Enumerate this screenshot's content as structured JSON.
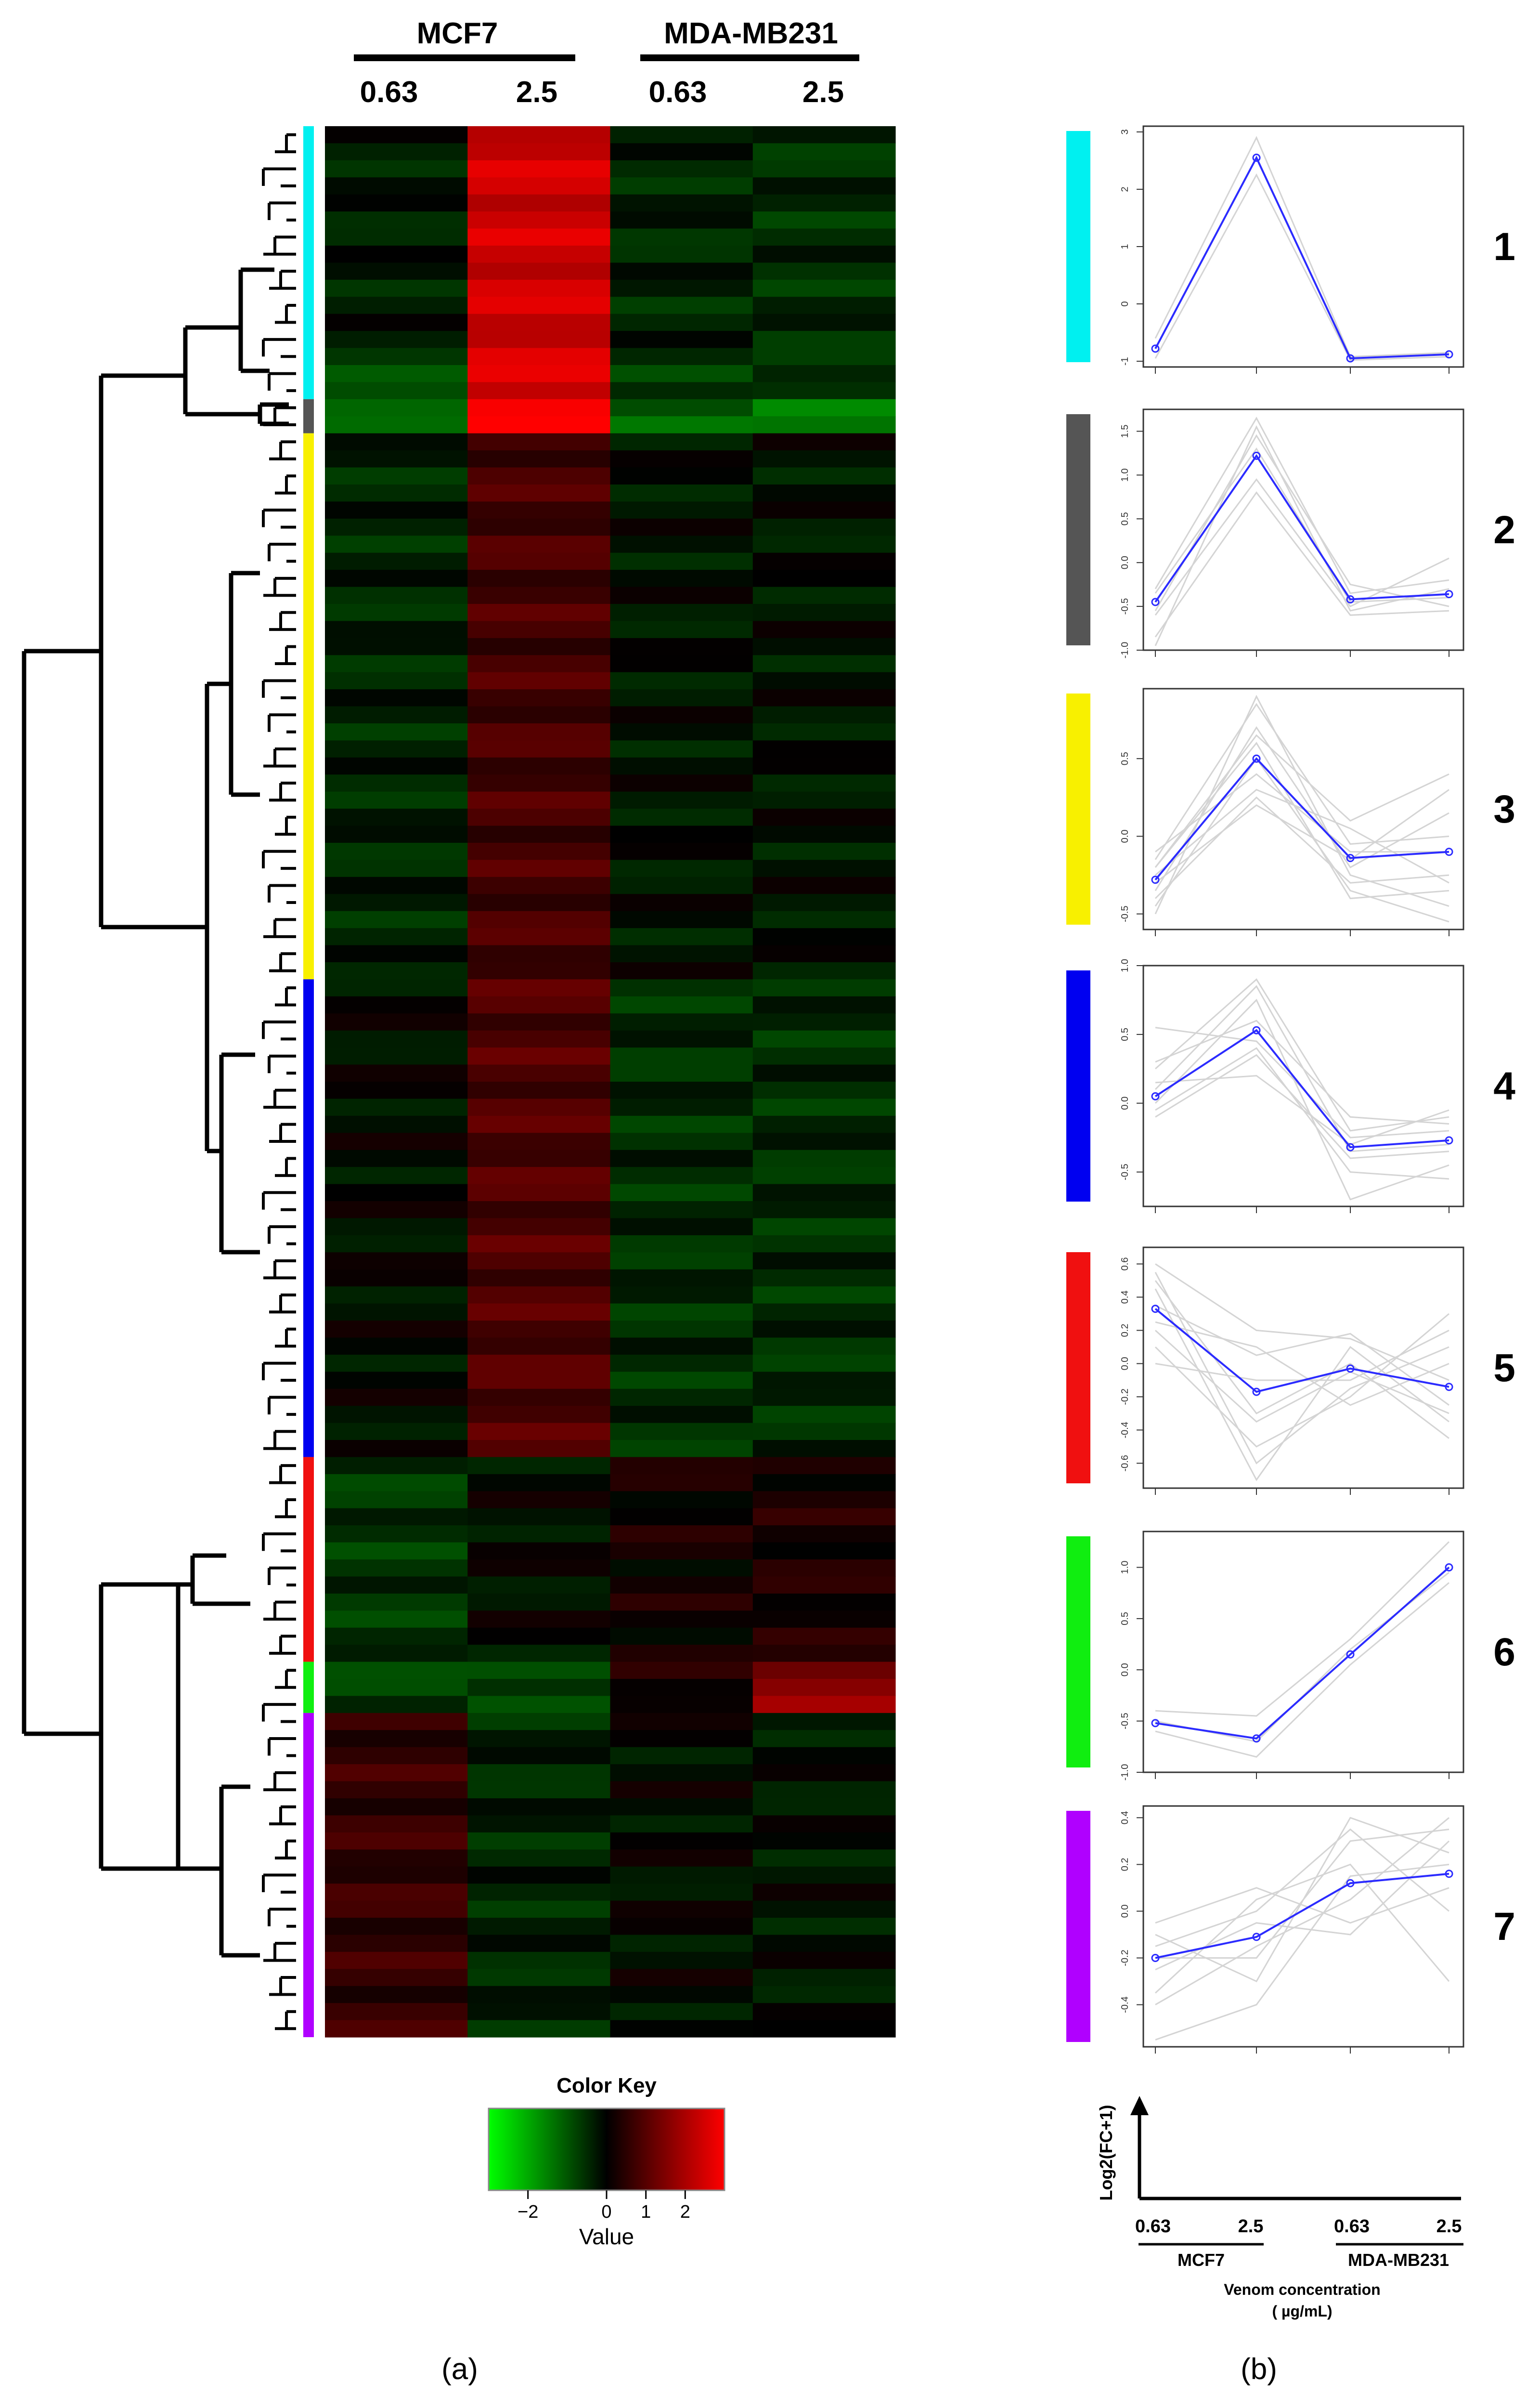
{
  "chart_data": [
    {
      "panel": "a",
      "type": "heatmap",
      "panel_label": "(a)",
      "column_groups": [
        {
          "name": "MCF7",
          "concentrations": [
            "0.63",
            "2.5"
          ]
        },
        {
          "name": "MDA-MB231",
          "concentrations": [
            "0.63",
            "2.5"
          ]
        }
      ],
      "cluster_colors": [
        "#00f0f0",
        "#555555",
        "#f8f000",
        "#0000f0",
        "#f01010",
        "#10ee10",
        "#b000ff"
      ],
      "cluster_row_counts": [
        16,
        2,
        32,
        28,
        12,
        3,
        19
      ],
      "row_blocks": [
        {
          "cluster": 1,
          "rows": 14,
          "values": [
            -0.3,
            2.4,
            -0.4,
            -0.5
          ]
        },
        {
          "cluster": 1,
          "rows": 2,
          "values": [
            -1.2,
            2.6,
            -0.6,
            -0.7
          ]
        },
        {
          "cluster": 2,
          "rows": 2,
          "values": [
            -1.0,
            3.0,
            -1.2,
            -1.3
          ]
        },
        {
          "cluster": 3,
          "rows": 32,
          "values": [
            -0.4,
            0.8,
            -0.2,
            -0.2
          ]
        },
        {
          "cluster": 4,
          "rows": 28,
          "values": [
            -0.1,
            0.9,
            -0.5,
            -0.5
          ]
        },
        {
          "cluster": 5,
          "rows": 12,
          "values": [
            -0.6,
            -0.1,
            0.2,
            0.3
          ]
        },
        {
          "cluster": 6,
          "rows": 3,
          "values": [
            -0.7,
            -0.9,
            0.3,
            1.6
          ]
        },
        {
          "cluster": 7,
          "rows": 19,
          "values": [
            0.6,
            -0.4,
            -0.1,
            -0.2
          ]
        }
      ],
      "color_key": {
        "title": "Color Key",
        "xlabel": "Value",
        "range": [
          -3,
          3
        ],
        "ticks": [
          -2,
          0,
          1,
          2
        ],
        "low_color": "#00ff00",
        "mid_color": "#000000",
        "high_color": "#ff0000"
      }
    },
    {
      "panel": "b",
      "type": "line",
      "panel_label": "(b)",
      "x_categories": [
        "0.63",
        "2.5",
        "0.63",
        "2.5"
      ],
      "x_groups": [
        "MCF7",
        "MDA-MB231"
      ],
      "xlabel": "Venom concentration",
      "xlabel_units": "( µg/mL)",
      "ylabel": "Log2(FC+1)",
      "mean_color": "#2b2bff",
      "profile_color": "#d4d4d4",
      "clusters": [
        {
          "id": "1",
          "color": "#00f0f0",
          "ylim": [
            -1.1,
            3.1
          ],
          "yticks": [
            -1,
            0,
            1,
            2,
            3
          ],
          "mean": [
            -0.78,
            2.55,
            -0.95,
            -0.88
          ],
          "profiles": [
            [
              -0.6,
              2.9,
              -0.92,
              -0.85
            ],
            [
              -0.95,
              2.25,
              -0.98,
              -0.92
            ]
          ]
        },
        {
          "id": "2",
          "color": "#555555",
          "ylim": [
            -1.0,
            1.75
          ],
          "yticks": [
            -1.0,
            -0.5,
            0.0,
            0.5,
            1.0,
            1.5
          ],
          "mean": [
            -0.45,
            1.22,
            -0.42,
            -0.36
          ],
          "profiles": [
            [
              -0.3,
              1.65,
              -0.35,
              -0.2
            ],
            [
              -0.85,
              0.8,
              -0.6,
              -0.55
            ],
            [
              -0.55,
              1.45,
              -0.25,
              -0.5
            ],
            [
              -0.6,
              0.95,
              -0.5,
              0.05
            ],
            [
              -0.35,
              1.3,
              -0.45,
              -0.4
            ],
            [
              -0.95,
              1.55,
              -0.55,
              -0.3
            ]
          ]
        },
        {
          "id": "3",
          "color": "#f8f000",
          "ylim": [
            -0.6,
            0.95
          ],
          "yticks": [
            -0.5,
            0.0,
            0.5
          ],
          "mean": [
            -0.28,
            0.5,
            -0.14,
            -0.1
          ],
          "profiles": [
            [
              -0.15,
              0.85,
              -0.05,
              0.0
            ],
            [
              -0.4,
              0.25,
              -0.3,
              -0.25
            ],
            [
              -0.2,
              0.65,
              0.1,
              0.4
            ],
            [
              -0.45,
              0.5,
              -0.35,
              -0.55
            ],
            [
              -0.25,
              0.3,
              0.05,
              -0.3
            ],
            [
              -0.35,
              0.7,
              -0.2,
              0.15
            ],
            [
              -0.1,
              0.4,
              -0.1,
              -0.1
            ],
            [
              -0.5,
              0.9,
              -0.25,
              -0.45
            ],
            [
              -0.3,
              0.2,
              -0.15,
              0.3
            ],
            [
              -0.2,
              0.6,
              -0.4,
              -0.35
            ]
          ]
        },
        {
          "id": "4",
          "color": "#0000f0",
          "ylim": [
            -0.75,
            1.0
          ],
          "yticks": [
            -0.5,
            0.0,
            0.5,
            1.0
          ],
          "mean": [
            0.05,
            0.53,
            -0.32,
            -0.27
          ],
          "profiles": [
            [
              0.25,
              0.9,
              -0.2,
              -0.1
            ],
            [
              -0.1,
              0.35,
              -0.4,
              -0.35
            ],
            [
              0.55,
              0.45,
              -0.25,
              -0.2
            ],
            [
              0.0,
              0.75,
              -0.7,
              -0.45
            ],
            [
              0.3,
              0.6,
              -0.1,
              -0.15
            ],
            [
              -0.05,
              0.4,
              -0.5,
              -0.55
            ],
            [
              0.15,
              0.2,
              -0.3,
              -0.05
            ],
            [
              0.1,
              0.85,
              -0.35,
              -0.3
            ]
          ]
        },
        {
          "id": "5",
          "color": "#f01010",
          "ylim": [
            -0.75,
            0.7
          ],
          "yticks": [
            -0.6,
            -0.4,
            -0.2,
            0.0,
            0.2,
            0.4,
            0.6
          ],
          "mean": [
            0.33,
            -0.17,
            -0.03,
            -0.14
          ],
          "profiles": [
            [
              0.6,
              0.2,
              0.15,
              -0.1
            ],
            [
              0.1,
              -0.5,
              -0.2,
              0.3
            ],
            [
              0.45,
              -0.7,
              0.1,
              -0.35
            ],
            [
              0.25,
              0.1,
              -0.25,
              0.0
            ],
            [
              0.5,
              -0.3,
              0.0,
              -0.45
            ],
            [
              0.0,
              -0.1,
              -0.1,
              0.2
            ],
            [
              0.35,
              0.05,
              0.18,
              -0.25
            ],
            [
              0.2,
              -0.35,
              -0.05,
              -0.3
            ],
            [
              0.55,
              -0.6,
              -0.15,
              0.1
            ]
          ]
        },
        {
          "id": "6",
          "color": "#10ee10",
          "ylim": [
            -1.0,
            1.35
          ],
          "yticks": [
            -1.0,
            -0.5,
            0.0,
            0.5,
            1.0
          ],
          "mean": [
            -0.52,
            -0.67,
            0.15,
            1.0
          ],
          "profiles": [
            [
              -0.4,
              -0.45,
              0.3,
              1.25
            ],
            [
              -0.6,
              -0.85,
              0.05,
              0.85
            ],
            [
              -0.5,
              -0.7,
              0.2,
              0.95
            ]
          ]
        },
        {
          "id": "7",
          "color": "#b000ff",
          "ylim": [
            -0.58,
            0.45
          ],
          "yticks": [
            -0.4,
            -0.2,
            0.0,
            0.2,
            0.4
          ],
          "mean": [
            -0.2,
            -0.11,
            0.12,
            0.16
          ],
          "profiles": [
            [
              -0.1,
              -0.3,
              0.4,
              0.25
            ],
            [
              -0.35,
              0.05,
              0.2,
              -0.3
            ],
            [
              -0.2,
              -0.2,
              0.3,
              0.35
            ],
            [
              -0.05,
              0.1,
              -0.05,
              0.1
            ],
            [
              -0.4,
              -0.15,
              0.05,
              0.4
            ],
            [
              -0.15,
              0.0,
              0.35,
              0.0
            ],
            [
              -0.55,
              -0.4,
              0.15,
              0.2
            ],
            [
              -0.25,
              -0.05,
              -0.1,
              0.3
            ]
          ]
        }
      ]
    }
  ]
}
